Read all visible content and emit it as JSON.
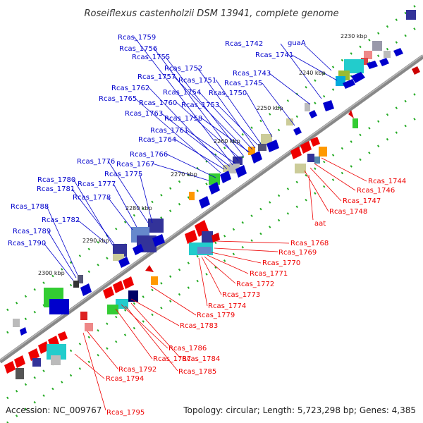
{
  "title": "Roseiflexus castenholzii DSM 13941, complete genome",
  "footer": {
    "accession": "Accession: NC_009767",
    "info": "Topology: circular; Length: 5,723,298 bp; Genes: 4,385"
  },
  "colors": {
    "forward": "#0000cc",
    "reverse": "#ee0000",
    "backbone": "#888888",
    "tick": "#22aa22"
  },
  "kbp_ticks": [
    "2230 kbp",
    "2240 kbp",
    "2250 kbp",
    "2260 kbp",
    "2270 kbp",
    "2280 kbp",
    "2290 kbp",
    "2300 kbp"
  ],
  "forward_labels": [
    "Rcas_1759",
    "Rcas_1756",
    "Rcas_1755",
    "Rcas_1752",
    "Rcas_1757",
    "Rcas_1751",
    "Rcas_1762",
    "Rcas_1754",
    "Rcas_1765",
    "Rcas_1760",
    "Rcas_1753",
    "Rcas_1763",
    "Rcas_1758",
    "Rcas_1761",
    "Rcas_1764",
    "Rcas_1766",
    "Rcas_1776",
    "Rcas_1767",
    "Rcas_1775",
    "Rcas_1780",
    "Rcas_1777",
    "Rcas_1781",
    "Rcas_1778",
    "Rcas_1788",
    "Rcas_1782",
    "Rcas_1789",
    "Rcas_1790",
    "Rcas_1742",
    "guaA",
    "Rcas_1741",
    "Rcas_1743",
    "Rcas_1745",
    "Rcas_1750"
  ],
  "reverse_labels": [
    "Rcas_1744",
    "Rcas_1746",
    "Rcas_1747",
    "Rcas_1748",
    "aat",
    "Rcas_1768",
    "Rcas_1769",
    "Rcas_1770",
    "Rcas_1771",
    "Rcas_1772",
    "Rcas_1773",
    "Rcas_1774",
    "Rcas_1779",
    "Rcas_1783",
    "Rcas_1786",
    "Rcas_1784",
    "Rcas_1787",
    "Rcas_1785",
    "Rcas_1792",
    "Rcas_1794",
    "Rcas_1795"
  ]
}
